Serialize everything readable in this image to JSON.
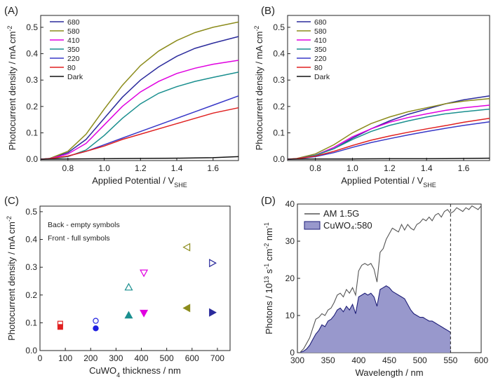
{
  "chart_data": [
    {
      "panel": "(A)",
      "type": "line",
      "xlabel": "Applied Potential / V",
      "xlabel_sub": "SHE",
      "ylabel": "Photocurrent density / mA cm",
      "ylabel_sup": "-2",
      "xlim": [
        0.65,
        1.74
      ],
      "ylim": [
        -0.005,
        0.545
      ],
      "xticks": [
        "0.8",
        "1.0",
        "1.2",
        "1.4",
        "1.6"
      ],
      "xtick_values": [
        0.8,
        1.0,
        1.2,
        1.4,
        1.6
      ],
      "yticks": [
        "0.0",
        "0.1",
        "0.2",
        "0.3",
        "0.4",
        "0.5"
      ],
      "ytick_values": [
        0.0,
        0.1,
        0.2,
        0.3,
        0.4,
        0.5
      ],
      "legend_position": "top-left",
      "series": [
        {
          "name": "680",
          "color": "#2b2b9c",
          "x": [
            0.65,
            0.7,
            0.8,
            0.9,
            1.0,
            1.1,
            1.2,
            1.3,
            1.4,
            1.5,
            1.6,
            1.74
          ],
          "values": [
            0.0,
            0.003,
            0.025,
            0.075,
            0.155,
            0.235,
            0.3,
            0.35,
            0.39,
            0.42,
            0.44,
            0.465
          ]
        },
        {
          "name": "580",
          "color": "#8c8c1c",
          "x": [
            0.65,
            0.7,
            0.8,
            0.9,
            1.0,
            1.1,
            1.2,
            1.3,
            1.4,
            1.5,
            1.6,
            1.74
          ],
          "values": [
            0.0,
            0.003,
            0.03,
            0.095,
            0.19,
            0.28,
            0.355,
            0.41,
            0.45,
            0.48,
            0.5,
            0.52
          ]
        },
        {
          "name": "410",
          "color": "#e000e0",
          "x": [
            0.65,
            0.7,
            0.8,
            0.9,
            1.0,
            1.1,
            1.2,
            1.3,
            1.4,
            1.5,
            1.6,
            1.74
          ],
          "values": [
            0.0,
            0.002,
            0.02,
            0.06,
            0.13,
            0.2,
            0.255,
            0.295,
            0.325,
            0.345,
            0.36,
            0.375
          ]
        },
        {
          "name": "350",
          "color": "#1a8f8f",
          "x": [
            0.65,
            0.7,
            0.8,
            0.9,
            1.0,
            1.1,
            1.2,
            1.3,
            1.4,
            1.5,
            1.6,
            1.74
          ],
          "values": [
            0.0,
            0.001,
            0.01,
            0.035,
            0.09,
            0.155,
            0.21,
            0.25,
            0.275,
            0.295,
            0.31,
            0.33
          ]
        },
        {
          "name": "220",
          "color": "#3838c8",
          "x": [
            0.65,
            0.7,
            0.8,
            0.9,
            1.0,
            1.1,
            1.2,
            1.3,
            1.4,
            1.5,
            1.6,
            1.74
          ],
          "values": [
            0.0,
            0.002,
            0.012,
            0.03,
            0.055,
            0.08,
            0.105,
            0.13,
            0.155,
            0.18,
            0.205,
            0.24
          ]
        },
        {
          "name": "80",
          "color": "#e02020",
          "x": [
            0.65,
            0.7,
            0.8,
            0.9,
            1.0,
            1.1,
            1.2,
            1.3,
            1.4,
            1.5,
            1.6,
            1.74
          ],
          "values": [
            0.0,
            0.002,
            0.012,
            0.03,
            0.05,
            0.075,
            0.095,
            0.115,
            0.135,
            0.155,
            0.175,
            0.195
          ]
        },
        {
          "name": "Dark",
          "color": "#111111",
          "x": [
            0.65,
            0.8,
            1.0,
            1.2,
            1.4,
            1.6,
            1.74
          ],
          "values": [
            0.0,
            0.001,
            0.002,
            0.003,
            0.004,
            0.006,
            0.01
          ]
        }
      ]
    },
    {
      "panel": "(B)",
      "type": "line",
      "xlabel": "Applied Potential / V",
      "xlabel_sub": "SHE",
      "ylabel": "Photocurrent density / mA cm",
      "ylabel_sup": "-2",
      "xlim": [
        0.65,
        1.74
      ],
      "ylim": [
        -0.005,
        0.545
      ],
      "xticks": [
        "0.8",
        "1.0",
        "1.2",
        "1.4",
        "1.6"
      ],
      "xtick_values": [
        0.8,
        1.0,
        1.2,
        1.4,
        1.6
      ],
      "yticks": [
        "0.0",
        "0.1",
        "0.2",
        "0.3",
        "0.4",
        "0.5"
      ],
      "ytick_values": [
        0.0,
        0.1,
        0.2,
        0.3,
        0.4,
        0.5
      ],
      "legend_position": "top-left",
      "series": [
        {
          "name": "680",
          "color": "#2b2b9c",
          "x": [
            0.65,
            0.7,
            0.8,
            0.9,
            1.0,
            1.1,
            1.2,
            1.3,
            1.4,
            1.5,
            1.6,
            1.74
          ],
          "values": [
            0.0,
            0.002,
            0.015,
            0.04,
            0.08,
            0.115,
            0.145,
            0.17,
            0.19,
            0.21,
            0.225,
            0.24
          ]
        },
        {
          "name": "580",
          "color": "#8c8c1c",
          "x": [
            0.65,
            0.7,
            0.8,
            0.9,
            1.0,
            1.1,
            1.2,
            1.3,
            1.4,
            1.5,
            1.6,
            1.74
          ],
          "values": [
            0.0,
            0.003,
            0.02,
            0.055,
            0.1,
            0.135,
            0.16,
            0.18,
            0.195,
            0.21,
            0.22,
            0.23
          ]
        },
        {
          "name": "410",
          "color": "#e000e0",
          "x": [
            0.65,
            0.7,
            0.8,
            0.9,
            1.0,
            1.1,
            1.2,
            1.3,
            1.4,
            1.5,
            1.6,
            1.74
          ],
          "values": [
            0.0,
            0.002,
            0.015,
            0.045,
            0.085,
            0.115,
            0.14,
            0.158,
            0.172,
            0.185,
            0.195,
            0.205
          ]
        },
        {
          "name": "350",
          "color": "#1a8f8f",
          "x": [
            0.65,
            0.7,
            0.8,
            0.9,
            1.0,
            1.1,
            1.2,
            1.3,
            1.4,
            1.5,
            1.6,
            1.74
          ],
          "values": [
            0.0,
            0.002,
            0.015,
            0.04,
            0.075,
            0.105,
            0.128,
            0.145,
            0.16,
            0.172,
            0.18,
            0.19
          ]
        },
        {
          "name": "220",
          "color": "#3838c8",
          "x": [
            0.65,
            0.7,
            0.8,
            0.9,
            1.0,
            1.1,
            1.2,
            1.3,
            1.4,
            1.5,
            1.6,
            1.74
          ],
          "values": [
            0.0,
            0.001,
            0.01,
            0.025,
            0.045,
            0.063,
            0.078,
            0.092,
            0.105,
            0.117,
            0.128,
            0.142
          ]
        },
        {
          "name": "80",
          "color": "#e02020",
          "x": [
            0.65,
            0.7,
            0.8,
            0.9,
            1.0,
            1.1,
            1.2,
            1.3,
            1.4,
            1.5,
            1.6,
            1.74
          ],
          "values": [
            0.0,
            0.002,
            0.012,
            0.03,
            0.052,
            0.072,
            0.088,
            0.102,
            0.115,
            0.127,
            0.14,
            0.155
          ]
        },
        {
          "name": "Dark",
          "color": "#111111",
          "x": [
            0.65,
            0.8,
            1.0,
            1.2,
            1.4,
            1.6,
            1.74
          ],
          "values": [
            0.0,
            0.001,
            0.001,
            0.002,
            0.002,
            0.003,
            0.004
          ]
        }
      ]
    },
    {
      "panel": "(C)",
      "type": "scatter",
      "xlabel": "CuWO",
      "xlabel_sub": "4",
      "xlabel_suffix": " thickness / nm",
      "ylabel": "Photocurrent density / mA cm",
      "ylabel_sup": "-2",
      "xlim": [
        0,
        750
      ],
      "ylim": [
        0,
        0.52
      ],
      "xticks": [
        "0",
        "100",
        "200",
        "300",
        "400",
        "500",
        "600",
        "700"
      ],
      "xtick_values": [
        0,
        100,
        200,
        300,
        400,
        500,
        600,
        700
      ],
      "yticks": [
        "0.0",
        "0.1",
        "0.2",
        "0.3",
        "0.4",
        "0.5"
      ],
      "ytick_values": [
        0.0,
        0.1,
        0.2,
        0.3,
        0.4,
        0.5
      ],
      "annotations": [
        "Back - empty symbols",
        "Front - full symbols"
      ],
      "series": [
        {
          "name": "Back",
          "filled": false,
          "points": [
            {
              "x": 80,
              "y": 0.097,
              "marker": "square",
              "color": "#e02020"
            },
            {
              "x": 220,
              "y": 0.107,
              "marker": "circle",
              "color": "#2020e0"
            },
            {
              "x": 350,
              "y": 0.228,
              "marker": "triangle-up",
              "color": "#1a8f8f"
            },
            {
              "x": 410,
              "y": 0.28,
              "marker": "triangle-down",
              "color": "#e000e0"
            },
            {
              "x": 580,
              "y": 0.372,
              "marker": "triangle-left",
              "color": "#8c8c1c"
            },
            {
              "x": 680,
              "y": 0.315,
              "marker": "triangle-right",
              "color": "#2b2b9c"
            }
          ]
        },
        {
          "name": "Front",
          "filled": true,
          "points": [
            {
              "x": 80,
              "y": 0.085,
              "marker": "square",
              "color": "#e02020"
            },
            {
              "x": 220,
              "y": 0.08,
              "marker": "circle",
              "color": "#2020e0"
            },
            {
              "x": 350,
              "y": 0.127,
              "marker": "triangle-up",
              "color": "#1a8f8f"
            },
            {
              "x": 410,
              "y": 0.135,
              "marker": "triangle-down",
              "color": "#e000e0"
            },
            {
              "x": 580,
              "y": 0.153,
              "marker": "triangle-left",
              "color": "#8c8c1c"
            },
            {
              "x": 680,
              "y": 0.137,
              "marker": "triangle-right",
              "color": "#2b2b9c"
            }
          ]
        }
      ]
    },
    {
      "panel": "(D)",
      "type": "area",
      "xlabel": "Wavelength / nm",
      "ylabel_parts": [
        "Photons / 10",
        "13",
        " s",
        "-1",
        " cm",
        "-2",
        " nm",
        "-1"
      ],
      "xlim": [
        300,
        600
      ],
      "ylim": [
        0,
        40
      ],
      "xticks": [
        "300",
        "350",
        "400",
        "450",
        "500",
        "550",
        "600"
      ],
      "xtick_values": [
        300,
        350,
        400,
        450,
        500,
        550,
        600
      ],
      "yticks": [
        "0",
        "10",
        "20",
        "30",
        "40"
      ],
      "ytick_values": [
        0,
        10,
        20,
        30,
        40
      ],
      "vline_x": 550,
      "legend_position": "top-left",
      "series": [
        {
          "name": "AM 1.5G",
          "color": "#555555",
          "fill": "none",
          "x": [
            305,
            310,
            315,
            320,
            325,
            330,
            335,
            340,
            345,
            350,
            355,
            360,
            365,
            370,
            375,
            380,
            385,
            390,
            395,
            400,
            405,
            410,
            415,
            420,
            425,
            430,
            435,
            440,
            445,
            450,
            455,
            460,
            465,
            470,
            475,
            480,
            485,
            490,
            495,
            500,
            505,
            510,
            515,
            520,
            525,
            530,
            535,
            540,
            545,
            550,
            555,
            560,
            565,
            570,
            575,
            580,
            585,
            590,
            595,
            600
          ],
          "values": [
            0.2,
            1.0,
            2.5,
            4.0,
            6.5,
            9.0,
            9.5,
            10.5,
            10.0,
            11.5,
            12.0,
            13.5,
            15.5,
            16.0,
            15.0,
            17.0,
            16.0,
            17.5,
            15.5,
            22.0,
            23.5,
            24.0,
            23.5,
            24.0,
            22.5,
            19.0,
            27.0,
            28.0,
            30.5,
            32.0,
            33.5,
            33.0,
            32.5,
            34.5,
            33.0,
            34.5,
            33.5,
            33.0,
            34.5,
            35.0,
            36.0,
            35.5,
            36.5,
            35.5,
            37.0,
            37.5,
            36.5,
            38.0,
            38.5,
            37.5,
            38.0,
            39.0,
            38.5,
            38.0,
            39.0,
            38.5,
            39.5,
            39.0,
            38.5,
            39.5
          ]
        },
        {
          "name": "CuWO₄:580",
          "color": "#1e1e78",
          "fill": "#9898cc",
          "x": [
            305,
            310,
            315,
            320,
            325,
            330,
            335,
            340,
            345,
            350,
            355,
            360,
            365,
            370,
            375,
            380,
            385,
            390,
            395,
            400,
            405,
            410,
            415,
            420,
            425,
            430,
            435,
            440,
            445,
            450,
            455,
            460,
            465,
            470,
            475,
            480,
            485,
            490,
            495,
            500,
            505,
            510,
            515,
            520,
            525,
            530,
            535,
            540,
            545,
            550
          ],
          "values": [
            0.1,
            0.4,
            1.0,
            2.0,
            3.5,
            5.0,
            6.0,
            7.5,
            7.0,
            8.5,
            9.0,
            10.0,
            11.5,
            12.0,
            11.0,
            12.5,
            11.5,
            13.0,
            10.5,
            15.0,
            15.5,
            16.0,
            15.5,
            16.0,
            15.0,
            12.5,
            17.0,
            17.5,
            18.0,
            17.5,
            16.5,
            16.0,
            15.5,
            15.0,
            14.5,
            13.0,
            11.5,
            10.5,
            10.0,
            9.5,
            9.5,
            9.0,
            8.5,
            8.5,
            8.0,
            7.5,
            7.0,
            6.5,
            6.0,
            5.5
          ]
        }
      ]
    }
  ]
}
